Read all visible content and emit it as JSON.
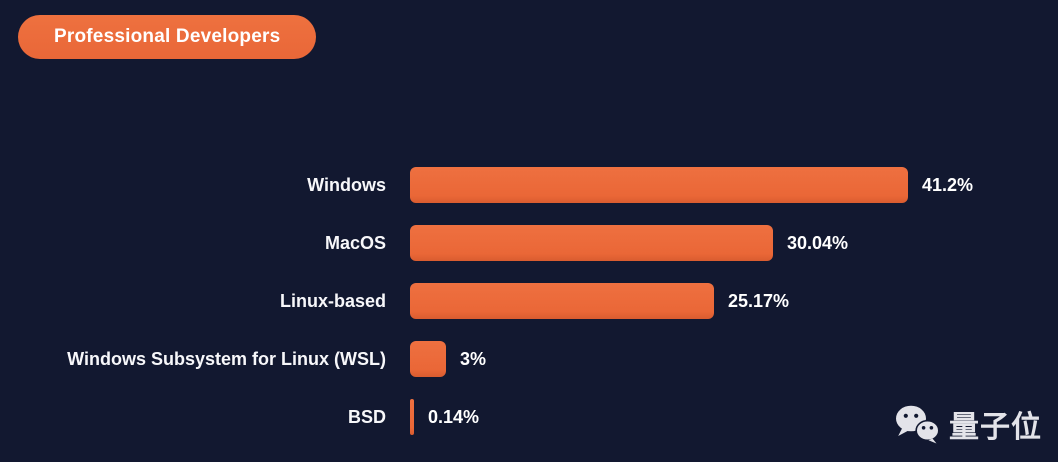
{
  "badge": {
    "label": "Professional Developers"
  },
  "watermark": {
    "text": "量子位",
    "icon": "wechat-icon"
  },
  "colors": {
    "background": "#121830",
    "accent_orange": "#eb6a3c",
    "text": "#ffffff",
    "watermark_gray": "#e3e3e9"
  },
  "chart_data": {
    "type": "bar",
    "orientation": "horizontal",
    "title": "Professional Developers",
    "categories": [
      "Windows",
      "MacOS",
      "Linux-based",
      "Windows Subsystem for Linux (WSL)",
      "BSD"
    ],
    "values": [
      41.2,
      30.04,
      25.17,
      3,
      0.14
    ],
    "value_labels": [
      "41.2%",
      "30.04%",
      "25.17%",
      "3%",
      "0.14%"
    ],
    "xlabel": "",
    "ylabel": "",
    "xlim": [
      0,
      41.2
    ],
    "grid": false,
    "legend": false,
    "bar_color": "#eb6a3c",
    "value_label_position": "end-of-bar"
  }
}
